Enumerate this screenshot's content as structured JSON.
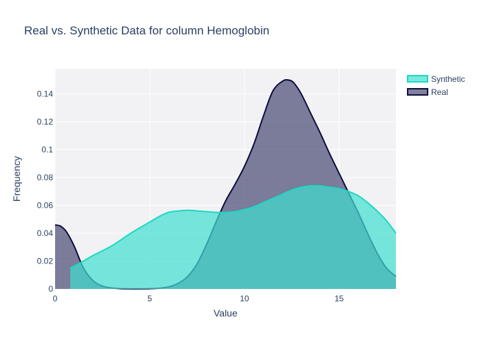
{
  "chart_data": {
    "type": "area",
    "title": "Real vs. Synthetic Data for column Hemoglobin",
    "xlabel": "Value",
    "ylabel": "Frequency",
    "xlim": [
      0,
      18
    ],
    "ylim": [
      0,
      0.158
    ],
    "x_ticks": [
      0,
      5,
      10,
      15
    ],
    "y_ticks": [
      0,
      0.02,
      0.04,
      0.06,
      0.08,
      0.1,
      0.12,
      0.14
    ],
    "y_tick_labels": [
      "0",
      "0.02",
      "0.04",
      "0.06",
      "0.08",
      "0.1",
      "0.12",
      "0.14"
    ],
    "grid": true,
    "legend_position": "top-right",
    "series": [
      {
        "name": "Synthetic",
        "fill_color": "#40e0d0",
        "line_color": "#1ad8c4",
        "x": [
          0.8,
          1.5,
          2,
          3,
          4,
          5,
          5.5,
          6,
          6.5,
          7,
          7.5,
          8,
          8.5,
          9,
          9.5,
          10,
          10.5,
          11,
          11.5,
          12,
          12.5,
          13,
          13.5,
          14,
          14.5,
          15,
          15.5,
          16,
          16.5,
          17,
          17.5,
          18
        ],
        "y": [
          0.015,
          0.02,
          0.024,
          0.031,
          0.04,
          0.048,
          0.052,
          0.055,
          0.056,
          0.0565,
          0.056,
          0.0555,
          0.055,
          0.055,
          0.0555,
          0.057,
          0.059,
          0.062,
          0.065,
          0.068,
          0.071,
          0.073,
          0.074,
          0.074,
          0.073,
          0.072,
          0.07,
          0.067,
          0.062,
          0.056,
          0.049,
          0.04
        ]
      },
      {
        "name": "Real",
        "fill_color": "#1a1a4e",
        "line_color": "#0d0d3d",
        "x": [
          0,
          0.3,
          0.6,
          1,
          1.5,
          2,
          2.5,
          3,
          3.5,
          4,
          4.5,
          5,
          5.5,
          6,
          6.5,
          7,
          7.5,
          8,
          8.5,
          9,
          9.5,
          10,
          10.5,
          11,
          11.5,
          12,
          12.3,
          12.6,
          13,
          13.5,
          14,
          14.5,
          15,
          15.5,
          16,
          16.5,
          17,
          17.5,
          18
        ],
        "y": [
          0.046,
          0.045,
          0.041,
          0.031,
          0.015,
          0.006,
          0.002,
          0.0007,
          0.0002,
          0.0001,
          0.0001,
          0.0002,
          0.0005,
          0.0015,
          0.004,
          0.009,
          0.018,
          0.032,
          0.048,
          0.063,
          0.075,
          0.088,
          0.104,
          0.124,
          0.142,
          0.149,
          0.15,
          0.148,
          0.14,
          0.126,
          0.112,
          0.097,
          0.083,
          0.069,
          0.055,
          0.04,
          0.026,
          0.015,
          0.009
        ]
      }
    ]
  }
}
